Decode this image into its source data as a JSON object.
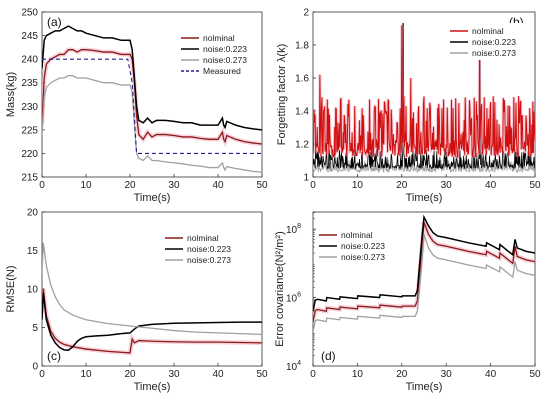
{
  "chart_data": [
    {
      "panel": "(a)",
      "type": "line",
      "xlabel": "Time(s)",
      "ylabel": "Mass(kg)",
      "xlim": [
        0,
        50
      ],
      "ylim": [
        215,
        250
      ],
      "xticks": [
        0,
        10,
        20,
        30,
        40,
        50
      ],
      "yticks": [
        215,
        220,
        225,
        230,
        235,
        240,
        245,
        250
      ],
      "legend_position": "top-right",
      "series": [
        {
          "name": "nolminal",
          "color": "#8b1a1a",
          "width": 1.3,
          "x": [
            0,
            0.5,
            1,
            2,
            3,
            4,
            5,
            6,
            7,
            8,
            9,
            10,
            12,
            14,
            16,
            18,
            20,
            20.5,
            21,
            21.5,
            22,
            23,
            24,
            25,
            26,
            28,
            30,
            32,
            34,
            36,
            38,
            40,
            41,
            41.3,
            41.6,
            42,
            44,
            46,
            48,
            50
          ],
          "y": [
            226,
            236,
            239,
            240,
            240.5,
            241,
            241,
            242,
            242,
            241.5,
            242,
            242,
            241.8,
            241.5,
            241.5,
            241,
            241,
            240,
            235,
            228,
            224,
            223,
            224.5,
            223.5,
            224,
            224,
            223.8,
            223.5,
            223.5,
            223.2,
            223,
            223,
            224.5,
            223,
            222.5,
            223.8,
            223,
            222.5,
            222.2,
            222
          ]
        },
        {
          "name": "noise:0.223",
          "color": "#000000",
          "width": 1.5,
          "x": [
            0,
            0.5,
            1,
            2,
            3,
            4,
            5,
            6,
            7,
            8,
            9,
            10,
            12,
            14,
            16,
            18,
            20,
            20.5,
            21,
            21.5,
            22,
            23,
            24,
            25,
            26,
            28,
            30,
            32,
            34,
            36,
            38,
            40,
            41,
            41.3,
            41.6,
            42,
            44,
            46,
            48,
            50
          ],
          "y": [
            238,
            244,
            245,
            245.5,
            246,
            246,
            246.5,
            247,
            246.5,
            246,
            246,
            245.5,
            245,
            244.5,
            244.5,
            244,
            244,
            242,
            236,
            230,
            227,
            226.5,
            227.5,
            226.5,
            227,
            227,
            226.8,
            226.5,
            226.5,
            226,
            226,
            226,
            227.5,
            226,
            225.5,
            226.8,
            226,
            225.5,
            225.2,
            225
          ]
        },
        {
          "name": "noise:0.273",
          "color": "#a0a0a0",
          "width": 1.3,
          "x": [
            0,
            0.5,
            1,
            2,
            3,
            4,
            5,
            6,
            7,
            8,
            9,
            10,
            12,
            14,
            16,
            18,
            20,
            20.5,
            21,
            21.5,
            22,
            23,
            24,
            25,
            26,
            28,
            30,
            32,
            34,
            36,
            38,
            40,
            41,
            41.3,
            41.6,
            42,
            44,
            46,
            48,
            50
          ],
          "y": [
            224,
            232,
            234,
            235,
            235.5,
            236,
            236,
            236.5,
            236.5,
            236,
            236,
            236,
            235.5,
            235,
            235,
            234.5,
            234.5,
            233,
            226,
            220,
            219,
            218.5,
            219.5,
            218.5,
            218.5,
            218.2,
            218,
            217.8,
            217.5,
            217.3,
            217,
            217,
            218,
            217,
            216.5,
            217.2,
            216.8,
            216.5,
            216.2,
            216
          ]
        },
        {
          "name": "Measured",
          "color": "#1f1f8f",
          "width": 1.1,
          "dash": "4,3",
          "x": [
            0,
            19.5,
            20.5,
            21.5,
            50
          ],
          "y": [
            240,
            240,
            235,
            220,
            220
          ]
        }
      ]
    },
    {
      "panel": "(b)",
      "type": "line",
      "xlabel": "Time(s)",
      "ylabel": "Forgetting factor λ(k)",
      "xlim": [
        0,
        50
      ],
      "ylim": [
        1,
        2
      ],
      "xticks": [
        0,
        10,
        20,
        30,
        40,
        50
      ],
      "yticks": [
        1,
        1.2,
        1.4,
        1.6,
        1.8,
        2
      ],
      "legend_position": "top-right",
      "noise_seed": 17,
      "series": [
        {
          "name": "nolminal",
          "color": "#d01010",
          "base": 1.12,
          "spread": 0.38,
          "peaks": [
            [
              20,
              1.92
            ],
            [
              37.5,
              1.72
            ],
            [
              1.5,
              1.62
            ],
            [
              22,
              1.6
            ]
          ]
        },
        {
          "name": "noise:0.223",
          "color": "#000000",
          "base": 1.05,
          "spread": 0.12,
          "peaks": [
            [
              20.3,
              1.93
            ],
            [
              37.6,
              1.75
            ]
          ]
        },
        {
          "name": "noise:0.273",
          "color": "#a0a0a0",
          "base": 1.03,
          "spread": 0.08,
          "peaks": [
            [
              20.1,
              1.9
            ]
          ]
        }
      ]
    },
    {
      "panel": "(c)",
      "type": "line",
      "xlabel": "Time(s)",
      "ylabel": "RMSE(N)",
      "xlim": [
        0,
        50
      ],
      "ylim": [
        0,
        20
      ],
      "xticks": [
        0,
        10,
        20,
        30,
        40,
        50
      ],
      "yticks": [
        0,
        5,
        10,
        15,
        20
      ],
      "legend_position": "top-right",
      "series": [
        {
          "name": "nolminal",
          "color": "#8b1a1a",
          "width": 1.3,
          "x": [
            0,
            0.3,
            1,
            2,
            3,
            4,
            5,
            7,
            10,
            15,
            20,
            20.5,
            21,
            22,
            24,
            26,
            30,
            35,
            40,
            45,
            50
          ],
          "y": [
            7,
            10,
            6.5,
            4.5,
            3.6,
            3.1,
            2.8,
            2.5,
            2.2,
            1.9,
            1.7,
            3.5,
            3.0,
            3.3,
            3.25,
            3.2,
            3.15,
            3.1,
            3.1,
            3.05,
            3.0
          ]
        },
        {
          "name": "noise:0.223",
          "color": "#000000",
          "width": 1.5,
          "x": [
            0,
            0.3,
            1,
            2,
            3,
            4,
            5,
            6,
            7,
            8,
            9,
            10,
            12,
            15,
            18,
            20,
            21,
            22,
            25,
            30,
            35,
            40,
            45,
            50
          ],
          "y": [
            6,
            9.5,
            6.0,
            4.0,
            3.0,
            2.4,
            2.1,
            2.05,
            2.5,
            3.2,
            3.6,
            3.8,
            3.9,
            4.0,
            4.2,
            4.3,
            4.8,
            5.2,
            5.4,
            5.55,
            5.6,
            5.65,
            5.7,
            5.7
          ]
        },
        {
          "name": "noise:0.273",
          "color": "#a0a0a0",
          "width": 1.3,
          "x": [
            0,
            0.3,
            1,
            2,
            3,
            4,
            5,
            7,
            10,
            15,
            20,
            25,
            30,
            35,
            40,
            45,
            50
          ],
          "y": [
            12,
            16,
            13,
            10.5,
            9.0,
            8.0,
            7.3,
            6.6,
            6.0,
            5.5,
            5.2,
            4.9,
            4.6,
            4.4,
            4.3,
            4.2,
            4.1
          ]
        }
      ]
    },
    {
      "panel": "(d)",
      "type": "line",
      "xlabel": "Time(s)",
      "ylabel": "Error covariance(N²/m²)",
      "xlim": [
        0,
        50
      ],
      "ylim_log10": [
        4,
        8.5
      ],
      "yscale": "log",
      "xticks": [
        0,
        10,
        20,
        30,
        40,
        50
      ],
      "yticks": [
        "10^4",
        "10^6",
        "10^8"
      ],
      "legend_position": "top-left",
      "series": [
        {
          "name": "nolminal",
          "color": "#8b1a1a",
          "width": 1.3,
          "x": [
            0,
            0.5,
            1,
            3,
            3.1,
            6,
            6.1,
            10,
            10.1,
            15,
            15.1,
            20,
            20.1,
            23,
            23.5,
            24.5,
            25,
            26,
            27,
            28,
            30,
            35,
            39,
            39.1,
            42,
            42.1,
            44,
            45,
            45.5,
            46,
            48,
            50
          ],
          "y": [
            5.3,
            5.62,
            5.65,
            5.6,
            5.7,
            5.65,
            5.72,
            5.67,
            5.75,
            5.7,
            5.78,
            5.72,
            5.75,
            5.75,
            5.9,
            7.4,
            8.2,
            7.85,
            7.65,
            7.55,
            7.5,
            7.35,
            7.25,
            7.35,
            7.15,
            7.3,
            7.1,
            7.0,
            7.5,
            7.2,
            7.1,
            7.05
          ]
        },
        {
          "name": "noise:0.223",
          "color": "#000000",
          "width": 1.5,
          "x": [
            0,
            0.5,
            1,
            3,
            3.1,
            6,
            6.1,
            10,
            10.1,
            15,
            15.1,
            20,
            20.1,
            23,
            23.5,
            24.5,
            25,
            26,
            27,
            28,
            30,
            35,
            39,
            39.1,
            42,
            42.1,
            44,
            45,
            45.5,
            46,
            48,
            50
          ],
          "y": [
            5.6,
            5.92,
            5.95,
            5.9,
            6.0,
            5.95,
            6.02,
            5.97,
            6.05,
            6.0,
            6.08,
            6.02,
            6.05,
            6.05,
            6.2,
            7.7,
            8.35,
            8.1,
            7.9,
            7.8,
            7.75,
            7.6,
            7.5,
            7.6,
            7.4,
            7.55,
            7.35,
            7.25,
            7.7,
            7.45,
            7.35,
            7.3
          ]
        },
        {
          "name": "noise:0.273",
          "color": "#a0a0a0",
          "width": 1.3,
          "x": [
            0,
            0.5,
            1,
            3,
            3.1,
            6,
            6.1,
            10,
            10.1,
            15,
            15.1,
            20,
            20.1,
            23,
            23.5,
            24.5,
            25,
            26,
            27,
            28,
            30,
            35,
            39,
            39.1,
            42,
            42.1,
            44,
            45,
            45.5,
            46,
            48,
            50
          ],
          "y": [
            5.0,
            5.32,
            5.35,
            5.3,
            5.4,
            5.35,
            5.42,
            5.37,
            5.45,
            5.4,
            5.48,
            5.42,
            5.45,
            5.45,
            5.6,
            7.0,
            7.85,
            7.45,
            7.25,
            7.15,
            7.1,
            6.95,
            6.85,
            6.95,
            6.75,
            6.9,
            6.7,
            6.6,
            7.05,
            6.8,
            6.7,
            6.65
          ]
        }
      ]
    }
  ]
}
